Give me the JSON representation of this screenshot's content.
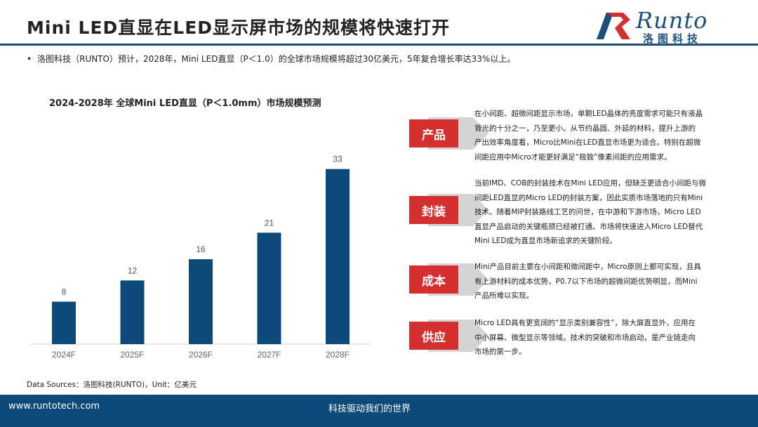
{
  "header": {
    "title": "Mini LED直显在LED显示屏市场的规模将快速打开",
    "logo_word": "Runto",
    "logo_cn": "洛图科技"
  },
  "intro": {
    "bullet": "•",
    "text": "洛图科技（RUNTO）预计，2028年，Mini LED直显（P＜1.0）的全球市场规模将超过30亿美元，5年复合增长率达33%以上。"
  },
  "chart_data": {
    "type": "bar",
    "title": "2024-2028年 全球Mini LED直显（P＜1.0mm）市场规模预测",
    "categories": [
      "2024F",
      "2025F",
      "2026F",
      "2027F",
      "2028F"
    ],
    "values": [
      8,
      12,
      16,
      21,
      33
    ],
    "value_labels": [
      "8",
      "12",
      "16",
      "21",
      "33"
    ],
    "ylim": [
      0,
      36
    ],
    "grid": false,
    "bar_color": "#0d4a7a"
  },
  "sections": [
    {
      "label": "产品",
      "lines": [
        "在小间距、超微间距显示市场，单颗LED晶体的亮度需求可能只有液晶",
        "背光的十分之一，乃至更小。从节约晶圆、外延的材料，提升上游的",
        "产出效率角度看，Micro比Mini在LED直显市场更为适合。特别在超微",
        "间距应用中Micro才能更好满足“极致”像素间距的应用需求。"
      ]
    },
    {
      "label": "封装",
      "lines": [
        "当前IMD、COB的封装技术在Mini LED应用，但缺乏更适合小间距与微",
        "间距LED直显的Micro LED的封装方案，因此实质市场落地的只有Mini",
        "技术。随着MIP封装路线工艺的问世，在中游和下游市场，Micro LED",
        "直显产品启动的关键瓶颈已经被打通。市场将快速进入Micro LED替代",
        "Mini LED成为直显市场新追求的关键阶段。"
      ]
    },
    {
      "label": "成本",
      "lines": [
        "Mini产品目前主要在小间距和微间距中，Micro原则上都可实现，且具",
        "有上游材料的成本优势，P0.7以下市场的超微间距优势明显，而Mini",
        "产品所难以实现。"
      ]
    },
    {
      "label": "供应",
      "lines": [
        "Micro LED具有更宽阔的“显示类别兼容性”，除大屏直显外，应用在",
        "中小屏幕、微型显示等领域。技术的突破和市场启动，是产业链走向",
        "市场的第一步。"
      ]
    }
  ],
  "colors": {
    "accent_red": "#d62f2f",
    "shadow_gray": "#d4d4d4",
    "brand_blue": "#0d4a7a"
  },
  "source": "Data Sources：洛图科技(RUNTO)，Unit：亿美元",
  "footer": {
    "url": "www.runtotech.com",
    "slogan": "科技驱动我们的世界"
  }
}
